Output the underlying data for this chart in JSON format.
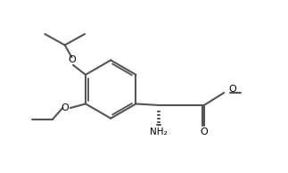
{
  "bg_color": "#ffffff",
  "line_color": "#555555",
  "line_width": 1.5,
  "figsize": [
    3.23,
    1.94
  ],
  "dpi": 100,
  "xlim": [
    0,
    10
  ],
  "ylim": [
    0,
    6.2
  ]
}
